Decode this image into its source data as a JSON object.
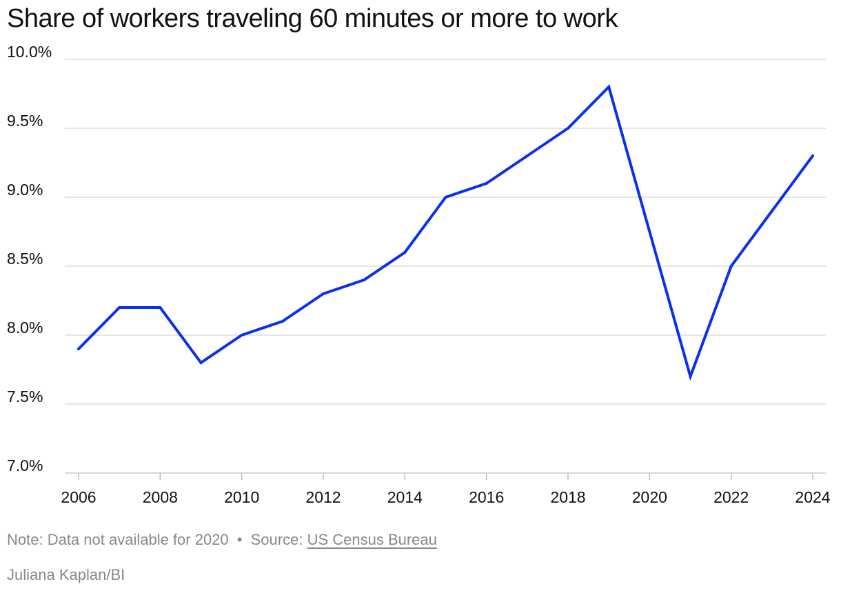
{
  "chart_data": {
    "type": "line",
    "title": "Share of workers traveling 60 minutes or more to work",
    "xlabel": "",
    "ylabel": "",
    "x_ticks": [
      "2006",
      "2008",
      "2010",
      "2012",
      "2014",
      "2016",
      "2018",
      "2020",
      "2022",
      "2024"
    ],
    "y_ticks": [
      "10.0%",
      "9.5%",
      "9.0%",
      "8.5%",
      "8.0%",
      "7.5%",
      "7.0%"
    ],
    "xlim": [
      2006,
      2024
    ],
    "ylim": [
      7.0,
      10.0
    ],
    "grid": true,
    "legend": "none",
    "series": [
      {
        "color": "#0a2ff0",
        "points": [
          {
            "x": 2006,
            "y": 7.9
          },
          {
            "x": 2007,
            "y": 8.2
          },
          {
            "x": 2008,
            "y": 8.2
          },
          {
            "x": 2009,
            "y": 7.8
          },
          {
            "x": 2010,
            "y": 8.0
          },
          {
            "x": 2011,
            "y": 8.1
          },
          {
            "x": 2012,
            "y": 8.3
          },
          {
            "x": 2013,
            "y": 8.4
          },
          {
            "x": 2014,
            "y": 8.6
          },
          {
            "x": 2015,
            "y": 9.0
          },
          {
            "x": 2016,
            "y": 9.1
          },
          {
            "x": 2017,
            "y": 9.3
          },
          {
            "x": 2018,
            "y": 9.5
          },
          {
            "x": 2019,
            "y": 9.8
          },
          {
            "x": 2021,
            "y": 7.7
          },
          {
            "x": 2022,
            "y": 8.5
          },
          {
            "x": 2023,
            "y": 8.9
          },
          {
            "x": 2024,
            "y": 9.3
          }
        ]
      }
    ]
  },
  "footer": {
    "note": "Note: Data not available for 2020",
    "separator": "•",
    "source_prefix": "Source:",
    "source_name": "US Census Bureau",
    "credit": "Juliana Kaplan/BI"
  }
}
